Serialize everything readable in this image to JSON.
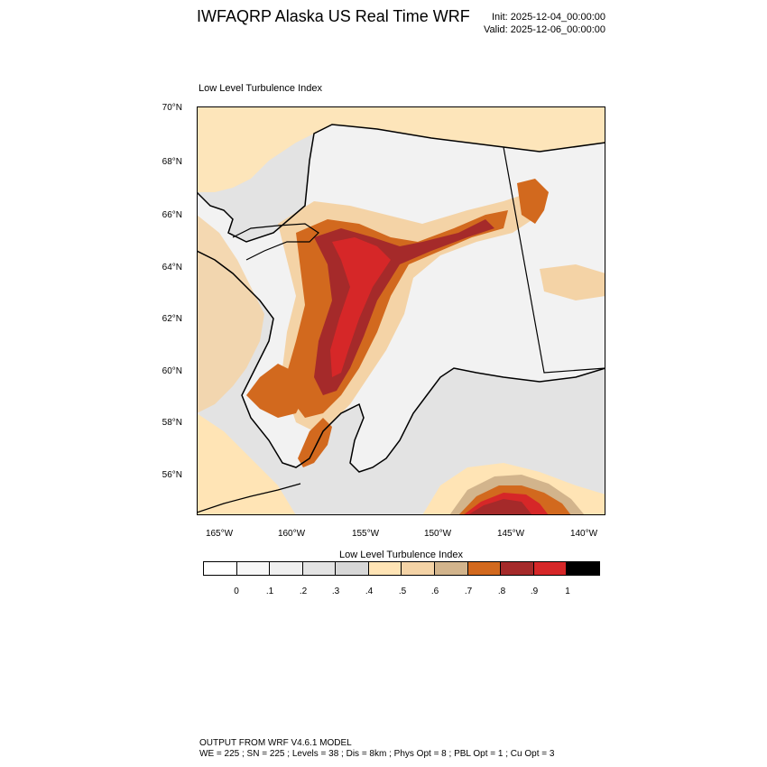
{
  "header": {
    "title": "IWFAQRP Alaska US Real Time WRF",
    "init": "Init: 2025-12-04_00:00:00",
    "valid": "Valid: 2025-12-06_00:00:00"
  },
  "map": {
    "panel_title": "Low Level Turbulence Index",
    "lat_labels": [
      "70°N",
      "68°N",
      "66°N",
      "64°N",
      "62°N",
      "60°N",
      "58°N",
      "56°N"
    ],
    "lon_labels": [
      "165°W",
      "160°W",
      "155°W",
      "150°W",
      "145°W",
      "140°W"
    ],
    "ocean_color": "#e6e6e6",
    "land_color": "#f0f0f0"
  },
  "colorbar": {
    "title": "Low Level Turbulence Index",
    "colors": [
      "#ffffff",
      "#f7f7f7",
      "#efefef",
      "#e3e3e3",
      "#d7d7d7",
      "#ffe4b5",
      "#f4d3a6",
      "#d2b48c",
      "#d2691e",
      "#a52a2a",
      "#d62728",
      "#000000"
    ],
    "labels": [
      "0",
      ".1",
      ".2",
      ".3",
      ".4",
      ".5",
      ".6",
      ".7",
      ".8",
      ".9",
      "1"
    ]
  },
  "footer": {
    "line1": "OUTPUT FROM WRF V4.6.1 MODEL",
    "line2": "WE = 225 ; SN = 225 ; Levels = 38 ; Dis = 8km ; Phys Opt = 8 ; PBL Opt = 1 ; Cu Opt = 3"
  }
}
